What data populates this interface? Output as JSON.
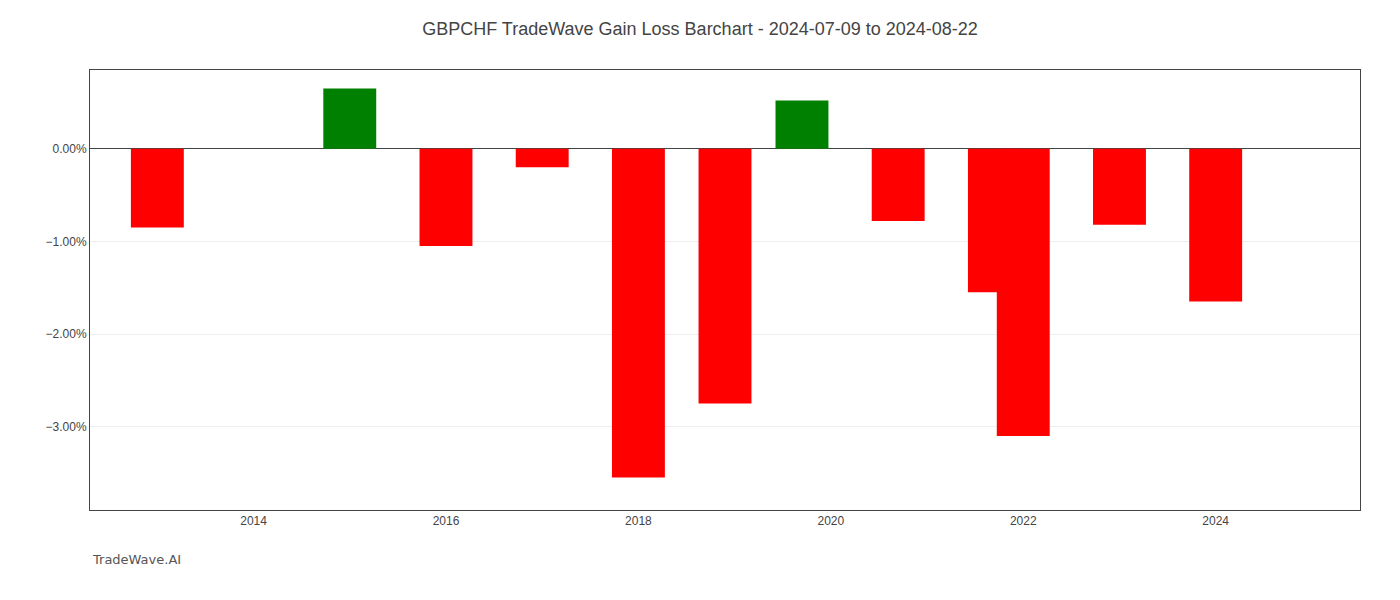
{
  "chart_data": {
    "type": "bar",
    "title": "GBPCHF TradeWave Gain Loss Barchart - 2024-07-09 to 2024-08-22",
    "annotations": [
      "TradeWave.AI"
    ],
    "x": [
      2013,
      2015,
      2016,
      2017,
      2018,
      2018.9,
      2019.7,
      2020.7,
      2021.7,
      2022,
      2023,
      2024
    ],
    "values": [
      -0.85,
      0.65,
      -1.05,
      -0.2,
      -3.55,
      -2.75,
      0.52,
      -0.78,
      -1.55,
      -3.1,
      -0.82,
      -1.65
    ],
    "colors": [
      "#ff0000",
      "#008000",
      "#ff0000",
      "#ff0000",
      "#ff0000",
      "#ff0000",
      "#008000",
      "#ff0000",
      "#ff0000",
      "#ff0000",
      "#ff0000",
      "#ff0000"
    ],
    "xlim": [
      2012.3,
      2025.5
    ],
    "xticks": [
      2014,
      2016,
      2018,
      2020,
      2022,
      2024
    ],
    "ylim": [
      -3.9,
      0.85
    ],
    "yticks": [
      {
        "value": 0.0,
        "label": "0.00%"
      },
      {
        "value": -1.0,
        "label": "−1.00%"
      },
      {
        "value": -2.0,
        "label": "−2.00%"
      },
      {
        "value": -3.0,
        "label": "−3.00%"
      }
    ],
    "grid": true
  }
}
